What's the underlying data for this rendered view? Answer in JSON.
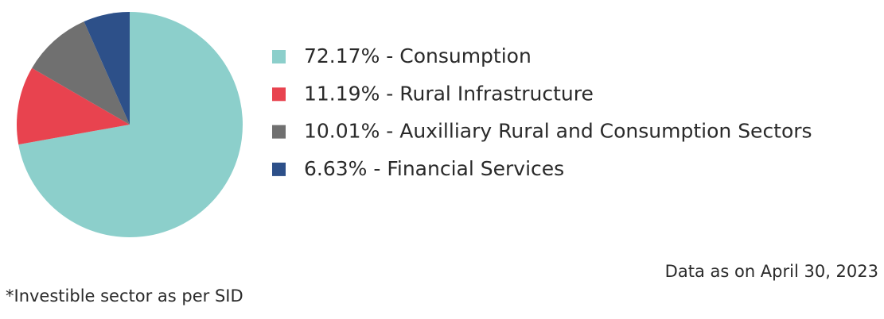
{
  "chart_data": {
    "type": "pie",
    "categories": [
      "72.17% - Consumption",
      "11.19% - Rural Infrastructure",
      "10.01% - Auxilliary Rural and Consumption Sectors",
      "6.63% - Financial Services"
    ],
    "values": [
      72.17,
      11.19,
      10.01,
      6.63
    ],
    "colors": [
      "#8ccfcb",
      "#e8434f",
      "#707070",
      "#2d5089"
    ],
    "start_angle": 0,
    "direction": "clockwise"
  },
  "notes": {
    "date": "Data as on April 30, 2023",
    "footnote": "*Investible sector as per SID"
  }
}
